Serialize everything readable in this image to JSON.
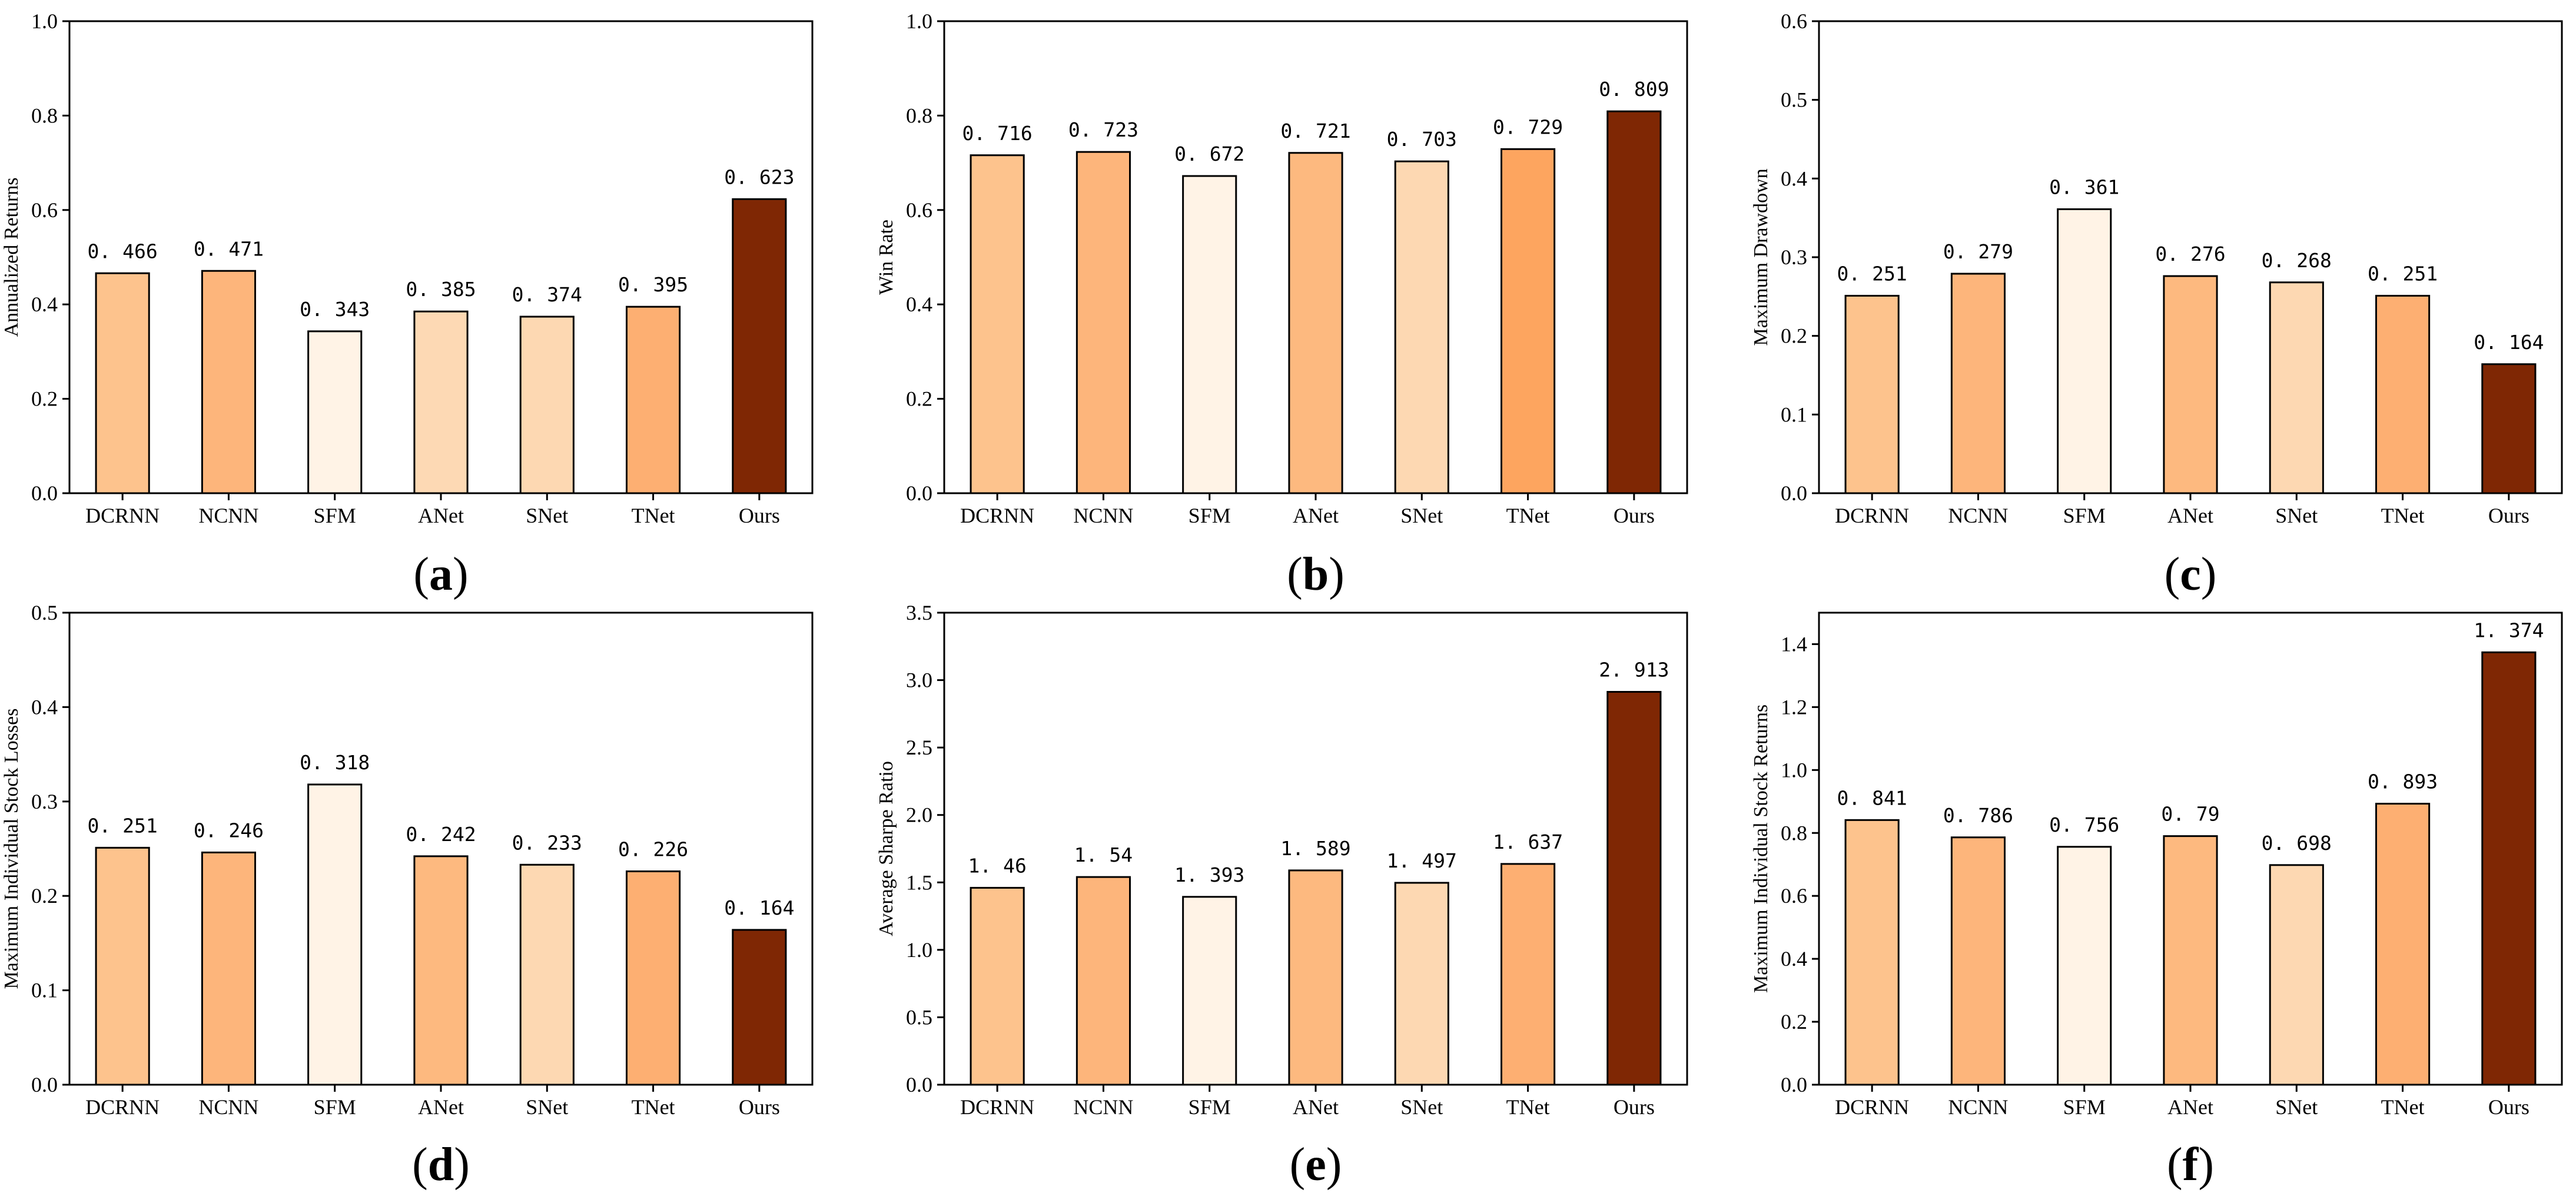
{
  "chart_data": [
    {
      "type": "bar",
      "panel": "a",
      "categories": [
        "DCRNN",
        "NCNN",
        "SFM",
        "ANet",
        "SNet",
        "TNet",
        "Ours"
      ],
      "values": [
        0.466,
        0.471,
        0.343,
        0.385,
        0.374,
        0.395,
        0.623
      ],
      "value_labels": [
        "0.466",
        "0.471",
        "0.343",
        "0.385",
        "0.374",
        "0.395",
        "0.623"
      ],
      "colors": [
        "#fdc38d",
        "#fdb57b",
        "#fff3e6",
        "#fdd9b4",
        "#fdd8b2",
        "#fdaf72",
        "#7f2704"
      ],
      "ylabel": "Annualized Returns",
      "ylim": [
        0,
        1.0
      ],
      "yticks": [
        0.0,
        0.2,
        0.4,
        0.6,
        0.8,
        1.0
      ],
      "ytick_labels": [
        "0.0",
        "0.2",
        "0.4",
        "0.6",
        "0.8",
        "1.0"
      ],
      "caption": "a"
    },
    {
      "type": "bar",
      "panel": "b",
      "categories": [
        "DCRNN",
        "NCNN",
        "SFM",
        "ANet",
        "SNet",
        "TNet",
        "Ours"
      ],
      "values": [
        0.716,
        0.723,
        0.672,
        0.721,
        0.703,
        0.729,
        0.809
      ],
      "value_labels": [
        "0.716",
        "0.723",
        "0.672",
        "0.721",
        "0.703",
        "0.729",
        "0.809"
      ],
      "colors": [
        "#fdc38d",
        "#fdb57b",
        "#fff3e6",
        "#fdb97f",
        "#fdd8b2",
        "#fda55f",
        "#7f2704"
      ],
      "ylabel": "Win Rate",
      "ylim": [
        0,
        1.0
      ],
      "yticks": [
        0.0,
        0.2,
        0.4,
        0.6,
        0.8,
        1.0
      ],
      "ytick_labels": [
        "0.0",
        "0.2",
        "0.4",
        "0.6",
        "0.8",
        "1.0"
      ],
      "caption": "b"
    },
    {
      "type": "bar",
      "panel": "c",
      "categories": [
        "DCRNN",
        "NCNN",
        "SFM",
        "ANet",
        "SNet",
        "TNet",
        "Ours"
      ],
      "values": [
        0.251,
        0.279,
        0.361,
        0.276,
        0.268,
        0.251,
        0.164
      ],
      "value_labels": [
        "0.251",
        "0.279",
        "0.361",
        "0.276",
        "0.268",
        "0.251",
        "0.164"
      ],
      "colors": [
        "#fdc38d",
        "#fdb57b",
        "#fff3e6",
        "#fdb97f",
        "#fdd8b2",
        "#fdaf72",
        "#7f2704"
      ],
      "ylabel": "Maximum Drawdown",
      "ylim": [
        0,
        0.6
      ],
      "yticks": [
        0.0,
        0.1,
        0.2,
        0.3,
        0.4,
        0.5,
        0.6
      ],
      "ytick_labels": [
        "0.0",
        "0.1",
        "0.2",
        "0.3",
        "0.4",
        "0.5",
        "0.6"
      ],
      "caption": "c"
    },
    {
      "type": "bar",
      "panel": "d",
      "categories": [
        "DCRNN",
        "NCNN",
        "SFM",
        "ANet",
        "SNet",
        "TNet",
        "Ours"
      ],
      "values": [
        0.251,
        0.246,
        0.318,
        0.242,
        0.233,
        0.226,
        0.164
      ],
      "value_labels": [
        "0.251",
        "0.246",
        "0.318",
        "0.242",
        "0.233",
        "0.226",
        "0.164"
      ],
      "colors": [
        "#fdc38d",
        "#fdb57b",
        "#fff3e6",
        "#fdb97f",
        "#fdd8b2",
        "#fdaf72",
        "#7f2704"
      ],
      "ylabel": "Maximum Individual Stock Losses",
      "ylim": [
        0,
        0.5
      ],
      "yticks": [
        0.0,
        0.1,
        0.2,
        0.3,
        0.4,
        0.5
      ],
      "ytick_labels": [
        "0.0",
        "0.1",
        "0.2",
        "0.3",
        "0.4",
        "0.5"
      ],
      "caption": "d"
    },
    {
      "type": "bar",
      "panel": "e",
      "categories": [
        "DCRNN",
        "NCNN",
        "SFM",
        "ANet",
        "SNet",
        "TNet",
        "Ours"
      ],
      "values": [
        1.46,
        1.54,
        1.393,
        1.589,
        1.497,
        1.637,
        2.913
      ],
      "value_labels": [
        "1.46",
        "1.54",
        "1.393",
        "1.589",
        "1.497",
        "1.637",
        "2.913"
      ],
      "colors": [
        "#fdc38d",
        "#fdb57b",
        "#fff3e6",
        "#fdb97f",
        "#fdd8b2",
        "#fdaf72",
        "#7f2704"
      ],
      "ylabel": "Average Sharpe Ratio",
      "ylim": [
        0,
        3.5
      ],
      "yticks": [
        0.0,
        0.5,
        1.0,
        1.5,
        2.0,
        2.5,
        3.0,
        3.5
      ],
      "ytick_labels": [
        "0.0",
        "0.5",
        "1.0",
        "1.5",
        "2.0",
        "2.5",
        "3.0",
        "3.5"
      ],
      "caption": "e"
    },
    {
      "type": "bar",
      "panel": "f",
      "categories": [
        "DCRNN",
        "NCNN",
        "SFM",
        "ANet",
        "SNet",
        "TNet",
        "Ours"
      ],
      "values": [
        0.841,
        0.786,
        0.756,
        0.79,
        0.698,
        0.893,
        1.374
      ],
      "value_labels": [
        "0.841",
        "0.786",
        "0.756",
        "0.79",
        "0.698",
        "0.893",
        "1.374"
      ],
      "colors": [
        "#fdc38d",
        "#fdb57b",
        "#fff3e6",
        "#fdb97f",
        "#fdd8b2",
        "#fdaf72",
        "#7f2704"
      ],
      "ylabel": "Maximum Individual Stock Returns",
      "ylim": [
        0,
        1.5
      ],
      "yticks": [
        0.0,
        0.2,
        0.4,
        0.6,
        0.8,
        1.0,
        1.2,
        1.4
      ],
      "ytick_labels": [
        "0.0",
        "0.2",
        "0.4",
        "0.6",
        "0.8",
        "1.0",
        "1.2",
        "1.4"
      ],
      "caption": "f"
    }
  ]
}
